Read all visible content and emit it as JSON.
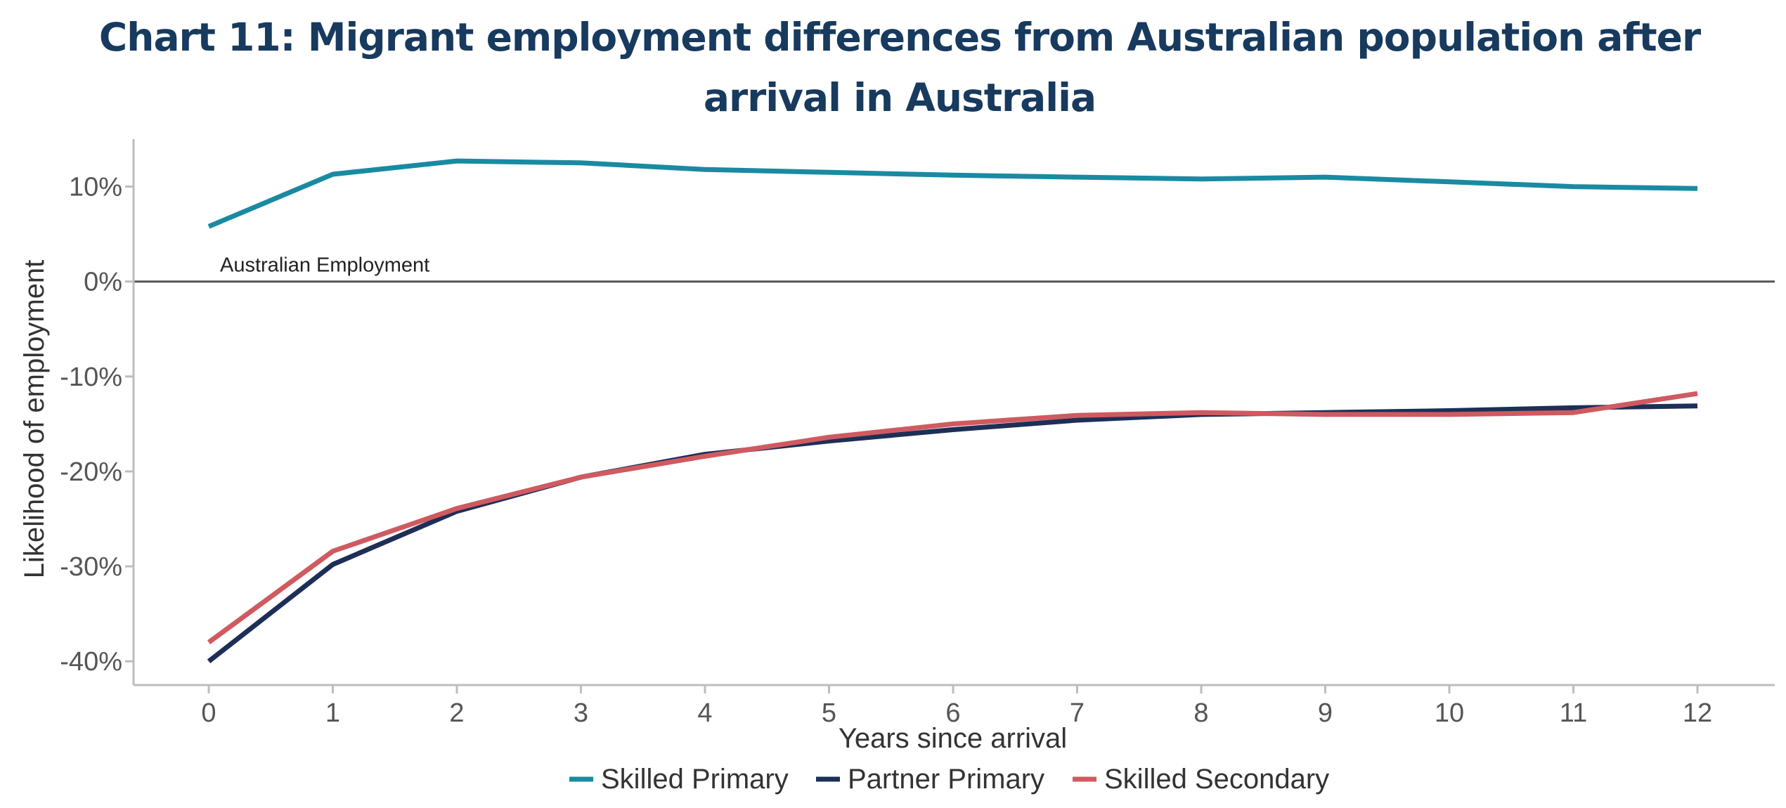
{
  "chart_data": {
    "type": "line",
    "title": "Chart 11: Migrant employment differences from Australian population after arrival in Australia",
    "xlabel": "Years since arrival",
    "ylabel": "Likelihood of employment",
    "x": [
      0,
      1,
      2,
      3,
      4,
      5,
      6,
      7,
      8,
      9,
      10,
      11,
      12
    ],
    "x_tick_labels": [
      "0",
      "1",
      "2",
      "3",
      "4",
      "5",
      "6",
      "7",
      "8",
      "9",
      "10",
      "11",
      "12"
    ],
    "ylim": [
      -42.5,
      15
    ],
    "y_ticks": [
      10,
      0,
      -10,
      -20,
      -30,
      -40
    ],
    "y_tick_labels": [
      "10%",
      "0%",
      "-10%",
      "-20%",
      "-30%",
      "-40%"
    ],
    "grid": false,
    "legend_position": "bottom",
    "reference_line": {
      "value": 0,
      "label": "Australian Employment",
      "color": "#555555"
    },
    "series": [
      {
        "name": "Skilled Primary",
        "color": "#1a8aa3",
        "values": [
          5.8,
          11.3,
          12.7,
          12.5,
          11.8,
          11.5,
          11.2,
          11.0,
          10.8,
          11.0,
          10.5,
          10.0,
          9.8
        ]
      },
      {
        "name": "Partner Primary",
        "color": "#1d2f57",
        "values": [
          -40.0,
          -29.8,
          -24.2,
          -20.6,
          -18.2,
          -16.8,
          -15.6,
          -14.6,
          -14.0,
          -13.8,
          -13.6,
          -13.3,
          -13.1
        ]
      },
      {
        "name": "Skilled Secondary",
        "color": "#cf5a60",
        "values": [
          -38.0,
          -28.4,
          -23.9,
          -20.6,
          -18.4,
          -16.4,
          -15.0,
          -14.1,
          -13.8,
          -14.0,
          -14.0,
          -13.8,
          -11.8
        ]
      }
    ]
  }
}
